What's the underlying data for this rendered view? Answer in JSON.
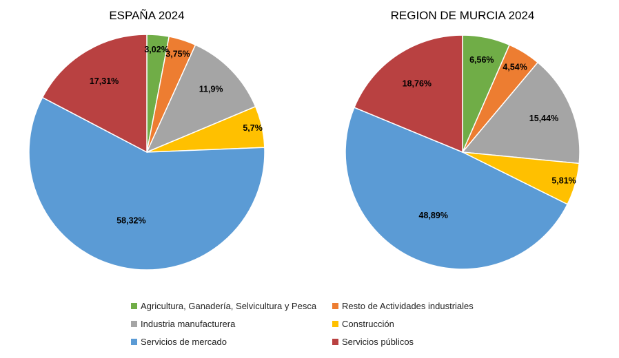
{
  "chart_data": [
    {
      "type": "pie",
      "title": "ESPAÑA 2024",
      "categories": [
        "Agricultura, Ganadería, Selvicultura y Pesca",
        "Resto de Actividades industriales",
        "Industria manufacturera",
        "Construcción",
        "Servicios de mercado",
        "Servicios públicos"
      ],
      "values": [
        3.02,
        3.75,
        11.9,
        5.7,
        58.32,
        17.31
      ],
      "labels": [
        "3,02%",
        "3,75%",
        "11,9%",
        "5,7%",
        "58,32%",
        "17,31%"
      ]
    },
    {
      "type": "pie",
      "title": "REGION DE MURCIA 2024",
      "categories": [
        "Agricultura, Ganadería, Selvicultura y Pesca",
        "Resto de Actividades industriales",
        "Industria manufacturera",
        "Construcción",
        "Servicios de mercado",
        "Servicios públicos"
      ],
      "values": [
        6.56,
        4.54,
        15.44,
        5.81,
        48.89,
        18.76
      ],
      "labels": [
        "6,56%",
        "4,54%",
        "15,44%",
        "5,81%",
        "48,89%",
        "18,76%"
      ]
    }
  ],
  "legend": {
    "position": "bottom",
    "items": [
      {
        "label": "Agricultura, Ganadería, Selvicultura y Pesca",
        "color": "#70ad47"
      },
      {
        "label": "Resto de Actividades industriales",
        "color": "#ed7d31"
      },
      {
        "label": "Industria manufacturera",
        "color": "#a5a5a5"
      },
      {
        "label": "Construcción",
        "color": "#ffc000"
      },
      {
        "label": "Servicios de mercado",
        "color": "#5b9bd5"
      },
      {
        "label": "Servicios públicos",
        "color": "#b94141"
      }
    ]
  }
}
